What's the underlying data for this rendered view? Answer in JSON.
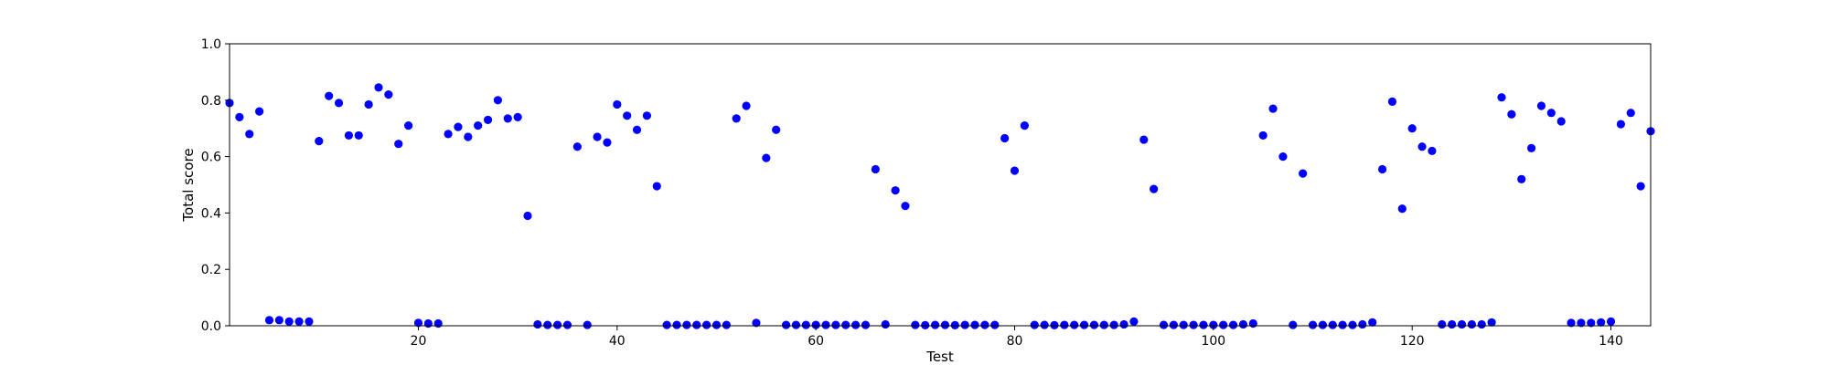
{
  "chart_data": {
    "type": "scatter",
    "title": "",
    "xlabel": "Test",
    "ylabel": "Total score",
    "xlim": [
      1,
      144
    ],
    "ylim": [
      0.0,
      1.0
    ],
    "xticks": [
      20,
      40,
      60,
      80,
      100,
      120,
      140
    ],
    "yticks": [
      0.0,
      0.2,
      0.4,
      0.6,
      0.8,
      1.0
    ],
    "ytick_labels": [
      "0.0",
      "0.2",
      "0.4",
      "0.6",
      "0.8",
      "1.0"
    ],
    "grid": false,
    "marker_color": "#0000ff",
    "series": [
      {
        "x": [
          1,
          2,
          3,
          4,
          5,
          6,
          7,
          8,
          9,
          10,
          11,
          12,
          13,
          14,
          15,
          16,
          17,
          18,
          19,
          20,
          21,
          22,
          23,
          24,
          25,
          26,
          27,
          28,
          29,
          30,
          31,
          32,
          33,
          34,
          35,
          36,
          37,
          38,
          39,
          40,
          41,
          42,
          43,
          44,
          45,
          46,
          47,
          48,
          49,
          50,
          51,
          52,
          53,
          54,
          55,
          56,
          57,
          58,
          59,
          60,
          61,
          62,
          63,
          64,
          65,
          66,
          67,
          68,
          69,
          70,
          71,
          72,
          73,
          74,
          75,
          76,
          77,
          78,
          79,
          80,
          81,
          82,
          83,
          84,
          85,
          86,
          87,
          88,
          89,
          90,
          91,
          92,
          93,
          94,
          95,
          96,
          97,
          98,
          99,
          100,
          101,
          102,
          103,
          104,
          105,
          106,
          107,
          108,
          109,
          110,
          111,
          112,
          113,
          114,
          115,
          116,
          117,
          118,
          119,
          120,
          121,
          122,
          123,
          124,
          125,
          126,
          127,
          128,
          129,
          130,
          131,
          132,
          133,
          134,
          135,
          136,
          137,
          138,
          139,
          140,
          141,
          142,
          143,
          144
        ],
        "y": [
          0.79,
          0.74,
          0.68,
          0.76,
          0.02,
          0.02,
          0.015,
          0.015,
          0.015,
          0.655,
          0.815,
          0.79,
          0.675,
          0.675,
          0.785,
          0.845,
          0.82,
          0.645,
          0.71,
          0.01,
          0.008,
          0.008,
          0.68,
          0.705,
          0.67,
          0.71,
          0.73,
          0.8,
          0.735,
          0.74,
          0.39,
          0.005,
          0.003,
          0.003,
          0.003,
          0.635,
          0.003,
          0.67,
          0.65,
          0.785,
          0.745,
          0.695,
          0.745,
          0.495,
          0.003,
          0.003,
          0.003,
          0.003,
          0.003,
          0.003,
          0.003,
          0.735,
          0.78,
          0.01,
          0.595,
          0.695,
          0.003,
          0.003,
          0.003,
          0.003,
          0.003,
          0.003,
          0.003,
          0.003,
          0.003,
          0.555,
          0.005,
          0.48,
          0.425,
          0.003,
          0.002,
          0.003,
          0.003,
          0.002,
          0.003,
          0.003,
          0.003,
          0.003,
          0.665,
          0.55,
          0.71,
          0.003,
          0.003,
          0.002,
          0.003,
          0.003,
          0.003,
          0.003,
          0.003,
          0.003,
          0.005,
          0.015,
          0.66,
          0.485,
          0.003,
          0.003,
          0.003,
          0.003,
          0.003,
          0.003,
          0.003,
          0.003,
          0.005,
          0.008,
          0.675,
          0.77,
          0.6,
          0.003,
          0.54,
          0.003,
          0.003,
          0.003,
          0.003,
          0.003,
          0.005,
          0.012,
          0.555,
          0.795,
          0.415,
          0.7,
          0.635,
          0.62,
          0.005,
          0.005,
          0.005,
          0.005,
          0.005,
          0.012,
          0.81,
          0.75,
          0.52,
          0.63,
          0.78,
          0.755,
          0.725,
          0.01,
          0.01,
          0.01,
          0.012,
          0.015,
          0.715,
          0.755,
          0.495,
          0.69
        ]
      }
    ]
  }
}
